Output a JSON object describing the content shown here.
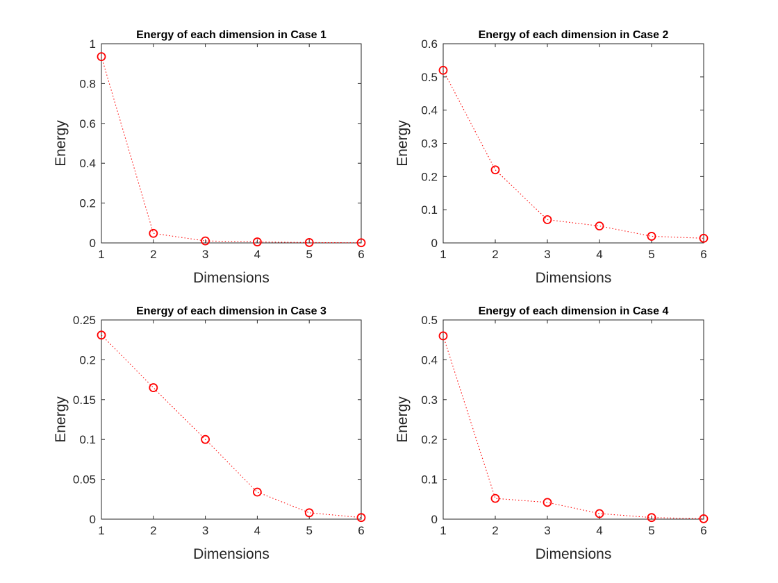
{
  "figure": {
    "background": "#ffffff",
    "series_color": "#ff0000",
    "axis_color": "#262626"
  },
  "chart_data": [
    {
      "type": "line",
      "title": "Energy of each dimension in Case 1",
      "xlabel": "Dimensions",
      "ylabel": "Energy",
      "xlim": [
        1,
        6
      ],
      "ylim": [
        0,
        1
      ],
      "xticks": [
        "1",
        "2",
        "3",
        "4",
        "5",
        "6"
      ],
      "yticks": [
        "0",
        "0.2",
        "0.4",
        "0.6",
        "0.8",
        "1"
      ],
      "grid": false,
      "marker": "circle",
      "line_style": "dotted",
      "series": [
        {
          "x": [
            1,
            2,
            3,
            4,
            5,
            6
          ],
          "values": [
            0.935,
            0.048,
            0.01,
            0.005,
            0.002,
            0.001
          ]
        }
      ]
    },
    {
      "type": "line",
      "title": "Energy of each dimension in Case 2",
      "xlabel": "Dimensions",
      "ylabel": "Energy",
      "xlim": [
        1,
        6
      ],
      "ylim": [
        0,
        0.6
      ],
      "xticks": [
        "1",
        "2",
        "3",
        "4",
        "5",
        "6"
      ],
      "yticks": [
        "0",
        "0.1",
        "0.2",
        "0.3",
        "0.4",
        "0.5",
        "0.6"
      ],
      "grid": false,
      "marker": "circle",
      "line_style": "dotted",
      "series": [
        {
          "x": [
            1,
            2,
            3,
            4,
            5,
            6
          ],
          "values": [
            0.52,
            0.22,
            0.07,
            0.051,
            0.02,
            0.014
          ]
        }
      ]
    },
    {
      "type": "line",
      "title": "Energy of each dimension in Case 3",
      "xlabel": "Dimensions",
      "ylabel": "Energy",
      "xlim": [
        1,
        6
      ],
      "ylim": [
        0,
        0.25
      ],
      "xticks": [
        "1",
        "2",
        "3",
        "4",
        "5",
        "6"
      ],
      "yticks": [
        "0",
        "0.05",
        "0.1",
        "0.15",
        "0.2",
        "0.25"
      ],
      "grid": false,
      "marker": "circle",
      "line_style": "dotted",
      "series": [
        {
          "x": [
            1,
            2,
            3,
            4,
            5,
            6
          ],
          "values": [
            0.231,
            0.165,
            0.1,
            0.034,
            0.008,
            0.002
          ]
        }
      ]
    },
    {
      "type": "line",
      "title": "Energy of each dimension in Case 4",
      "xlabel": "Dimensions",
      "ylabel": "Energy",
      "xlim": [
        1,
        6
      ],
      "ylim": [
        0,
        0.5
      ],
      "xticks": [
        "1",
        "2",
        "3",
        "4",
        "5",
        "6"
      ],
      "yticks": [
        "0",
        "0.1",
        "0.2",
        "0.3",
        "0.4",
        "0.5"
      ],
      "grid": false,
      "marker": "circle",
      "line_style": "dotted",
      "series": [
        {
          "x": [
            1,
            2,
            3,
            4,
            5,
            6
          ],
          "values": [
            0.46,
            0.052,
            0.042,
            0.014,
            0.004,
            0.001
          ]
        }
      ]
    }
  ]
}
